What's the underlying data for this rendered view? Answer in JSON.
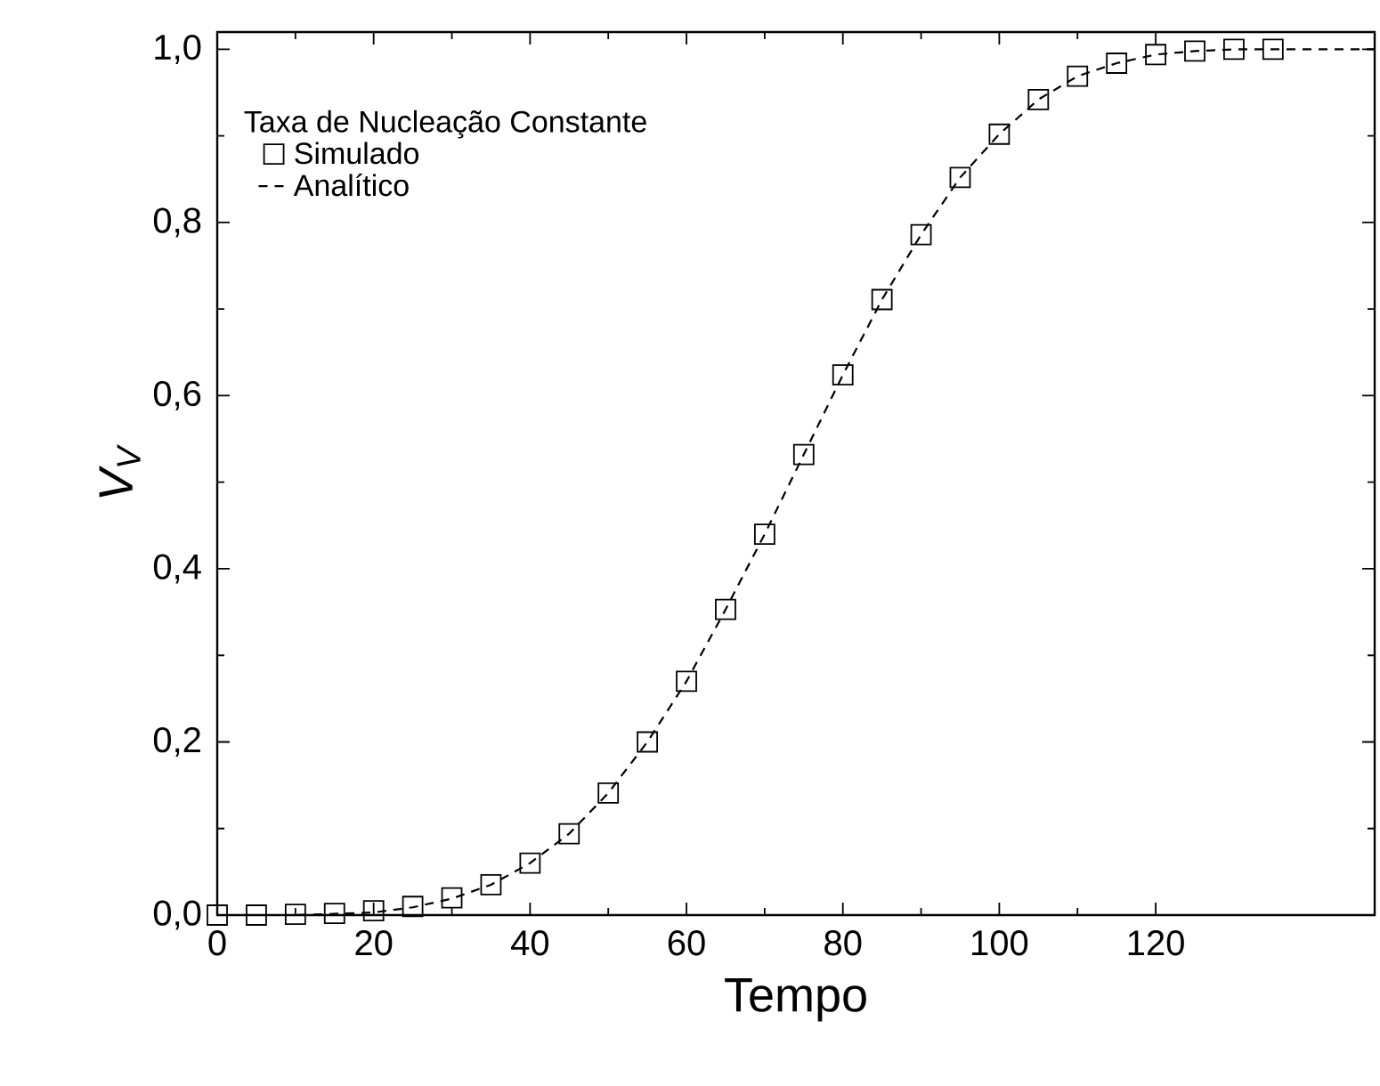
{
  "chart_data": {
    "type": "line",
    "xlabel": "Tempo",
    "ylabel": "V$_{V}$",
    "legend_title": "Taxa de Nucleação Constante",
    "legend": "top left",
    "xlim": [
      0,
      148
    ],
    "ylim": [
      0,
      1.02
    ],
    "xticks": [
      0,
      20,
      40,
      60,
      80,
      100,
      120
    ],
    "yticks": [
      {
        "value": 0,
        "label": "0,0"
      },
      {
        "value": 0.2,
        "label": "0,2"
      },
      {
        "value": 0.4,
        "label": "0,4"
      },
      {
        "value": 0.6,
        "label": "0,6"
      },
      {
        "value": 0.8,
        "label": "0,8"
      },
      {
        "value": 1.0,
        "label": "1,0"
      }
    ],
    "series": [
      {
        "name": "Simulado",
        "type": "scatter",
        "marker": "square",
        "color": "#000000",
        "x": [
          0,
          5,
          10,
          15,
          20,
          25,
          30,
          35,
          40,
          45,
          50,
          55,
          60,
          65,
          70,
          75,
          80,
          85,
          90,
          95,
          100,
          105,
          110,
          115,
          120,
          125,
          130,
          135
        ],
        "values": [
          0,
          0,
          0.001,
          0.002,
          0.005,
          0.01,
          0.02,
          0.035,
          0.06,
          0.094,
          0.141,
          0.2,
          0.27,
          0.353,
          0.44,
          0.532,
          0.624,
          0.711,
          0.786,
          0.852,
          0.902,
          0.942,
          0.969,
          0.984,
          0.994,
          0.998,
          1.0,
          1.0
        ]
      },
      {
        "name": "Analítico",
        "type": "line",
        "line_style": "dashed",
        "marker": "none",
        "color": "#000000",
        "x": [
          0,
          10,
          20,
          25,
          30,
          35,
          40,
          45,
          50,
          55,
          60,
          65,
          70,
          75,
          80,
          85,
          90,
          95,
          100,
          105,
          110,
          115,
          120,
          125,
          130,
          140,
          148
        ],
        "values": [
          0,
          0,
          0.003,
          0.009,
          0.019,
          0.035,
          0.06,
          0.094,
          0.141,
          0.2,
          0.27,
          0.353,
          0.44,
          0.532,
          0.624,
          0.711,
          0.786,
          0.852,
          0.902,
          0.942,
          0.969,
          0.984,
          0.994,
          0.998,
          1.0,
          1.0,
          1.0
        ]
      }
    ]
  }
}
